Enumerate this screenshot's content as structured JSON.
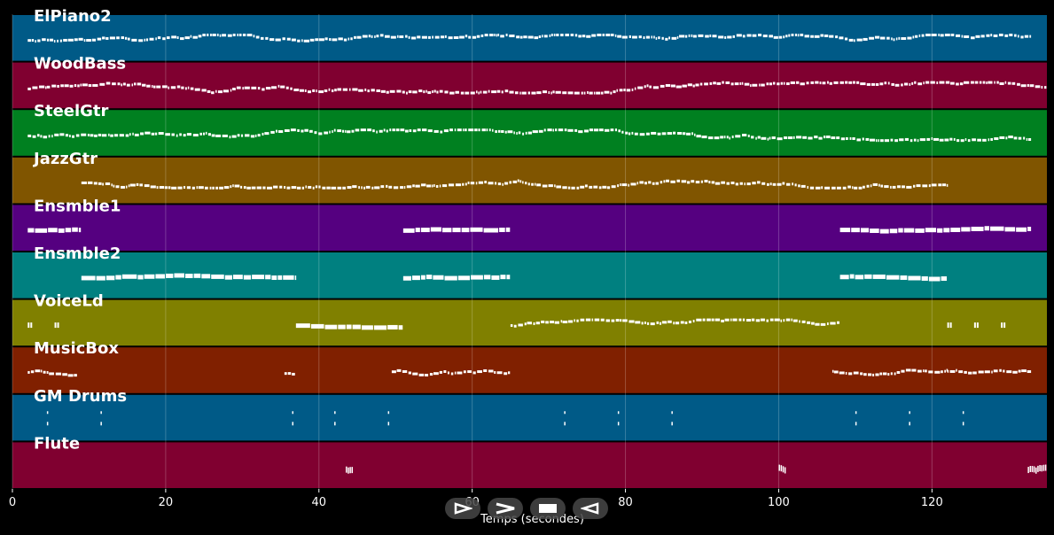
{
  "chart_data": {
    "type": "piano-roll",
    "xlabel": "Temps (secondes)",
    "xlim": [
      0,
      135
    ],
    "xticks": [
      0,
      20,
      40,
      60,
      80,
      100,
      120
    ],
    "grid": true,
    "tracks": [
      {
        "name": "ElPiano2",
        "color": "#005a87",
        "segments": [
          [
            2,
            133,
            "dense"
          ]
        ]
      },
      {
        "name": "WoodBass",
        "color": "#800030",
        "segments": [
          [
            2,
            135,
            "dense"
          ]
        ]
      },
      {
        "name": "SteelGtr",
        "color": "#008020",
        "segments": [
          [
            2,
            133,
            "dense"
          ]
        ]
      },
      {
        "name": "JazzGtr",
        "color": "#805500",
        "segments": [
          [
            9,
            122,
            "dense"
          ]
        ]
      },
      {
        "name": "Ensmble1",
        "color": "#550080",
        "segments": [
          [
            2,
            9,
            "phrase"
          ],
          [
            51,
            65,
            "phrase"
          ],
          [
            108,
            133,
            "phrase"
          ]
        ]
      },
      {
        "name": "Ensmble2",
        "color": "#008080",
        "segments": [
          [
            9,
            37,
            "phrase"
          ],
          [
            51,
            65,
            "phrase"
          ],
          [
            108,
            122,
            "phrase"
          ]
        ]
      },
      {
        "name": "VoiceLd",
        "color": "#808000",
        "segments": [
          [
            2,
            2.5,
            "short"
          ],
          [
            5.5,
            6,
            "short"
          ],
          [
            37,
            51,
            "phrase"
          ],
          [
            65,
            108,
            "dense"
          ],
          [
            122,
            122.5,
            "short"
          ],
          [
            125.5,
            126,
            "short"
          ],
          [
            129,
            129.5,
            "short"
          ]
        ]
      },
      {
        "name": "MusicBox",
        "color": "#802000",
        "segments": [
          [
            2,
            8.5,
            "dense"
          ],
          [
            35.5,
            37,
            "dense"
          ],
          [
            49.5,
            65,
            "dense"
          ],
          [
            107,
            122,
            "dense"
          ],
          [
            122,
            133,
            "dense"
          ]
        ]
      },
      {
        "name": "GM Drums",
        "color": "#005a87",
        "segments": [
          [
            4.5,
            4.7,
            "hit"
          ],
          [
            11.5,
            11.7,
            "hit"
          ],
          [
            36.5,
            36.7,
            "hit"
          ],
          [
            42,
            42.2,
            "hit"
          ],
          [
            49,
            49.2,
            "hit"
          ],
          [
            72,
            72.2,
            "hit"
          ],
          [
            79,
            79.2,
            "hit"
          ],
          [
            86,
            86.2,
            "hit"
          ],
          [
            110,
            110.2,
            "hit"
          ],
          [
            117,
            117.2,
            "hit"
          ],
          [
            124,
            124.2,
            "hit"
          ]
        ]
      },
      {
        "name": "Flute",
        "color": "#800030",
        "segments": [
          [
            43.5,
            44.5,
            "trill"
          ],
          [
            100,
            101,
            "trill"
          ],
          [
            132.5,
            135,
            "trill"
          ]
        ]
      }
    ]
  },
  "controls": [
    {
      "name": "play-from-start",
      "icon": "play-outline-icon"
    },
    {
      "name": "play",
      "icon": "play-chevron-icon"
    },
    {
      "name": "stop",
      "icon": "stop-icon"
    },
    {
      "name": "rewind",
      "icon": "reverse-icon"
    }
  ]
}
